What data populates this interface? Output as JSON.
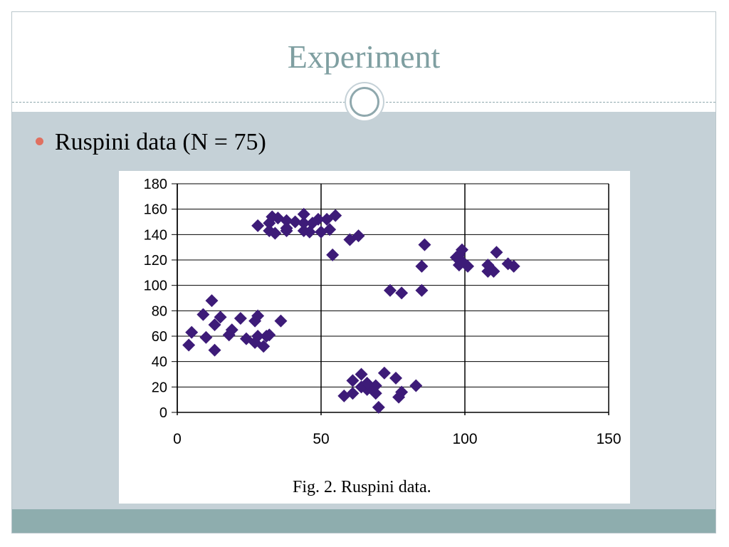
{
  "slide": {
    "title": "Experiment",
    "bullet": "Ruspini data (N = 75)"
  },
  "colors": {
    "background": "#c5d1d7",
    "title": "#7f9fa1",
    "bullet_dot": "#e07060",
    "marker": "#3d1b78",
    "footer": "#8eadae"
  },
  "chart_data": {
    "type": "scatter",
    "title": "",
    "caption": "Fig. 2.  Ruspini data.",
    "xlabel": "",
    "ylabel": "",
    "xlim": [
      0,
      150
    ],
    "ylim": [
      0,
      180
    ],
    "xticks": [
      0,
      50,
      100,
      150
    ],
    "yticks": [
      0,
      20,
      40,
      60,
      80,
      100,
      120,
      140,
      160,
      180
    ],
    "grid": "horizontal and vertical major gridlines",
    "marker": "diamond",
    "points": [
      [
        4,
        53
      ],
      [
        5,
        63
      ],
      [
        10,
        59
      ],
      [
        9,
        77
      ],
      [
        13,
        49
      ],
      [
        13,
        69
      ],
      [
        12,
        88
      ],
      [
        15,
        75
      ],
      [
        18,
        61
      ],
      [
        19,
        65
      ],
      [
        22,
        74
      ],
      [
        27,
        72
      ],
      [
        28,
        76
      ],
      [
        24,
        58
      ],
      [
        27,
        55
      ],
      [
        28,
        60
      ],
      [
        30,
        52
      ],
      [
        31,
        60
      ],
      [
        32,
        61
      ],
      [
        36,
        72
      ],
      [
        28,
        147
      ],
      [
        32,
        149
      ],
      [
        35,
        153
      ],
      [
        33,
        154
      ],
      [
        38,
        151
      ],
      [
        41,
        150
      ],
      [
        38,
        145
      ],
      [
        38,
        143
      ],
      [
        32,
        143
      ],
      [
        34,
        141
      ],
      [
        44,
        156
      ],
      [
        44,
        149
      ],
      [
        44,
        143
      ],
      [
        46,
        142
      ],
      [
        47,
        149
      ],
      [
        49,
        152
      ],
      [
        50,
        142
      ],
      [
        53,
        144
      ],
      [
        52,
        152
      ],
      [
        55,
        155
      ],
      [
        54,
        124
      ],
      [
        60,
        136
      ],
      [
        63,
        139
      ],
      [
        86,
        132
      ],
      [
        85,
        115
      ],
      [
        85,
        96
      ],
      [
        78,
        94
      ],
      [
        74,
        96
      ],
      [
        97,
        122
      ],
      [
        98,
        116
      ],
      [
        98,
        124
      ],
      [
        99,
        119
      ],
      [
        99,
        128
      ],
      [
        101,
        115
      ],
      [
        108,
        111
      ],
      [
        110,
        111
      ],
      [
        108,
        116
      ],
      [
        111,
        126
      ],
      [
        115,
        117
      ],
      [
        117,
        115
      ],
      [
        70,
        4
      ],
      [
        77,
        12
      ],
      [
        83,
        21
      ],
      [
        61,
        15
      ],
      [
        69,
        15
      ],
      [
        78,
        16
      ],
      [
        66,
        18
      ],
      [
        58,
        13
      ],
      [
        64,
        20
      ],
      [
        69,
        21
      ],
      [
        66,
        23
      ],
      [
        61,
        25
      ],
      [
        76,
        27
      ],
      [
        72,
        31
      ],
      [
        64,
        30
      ]
    ]
  }
}
